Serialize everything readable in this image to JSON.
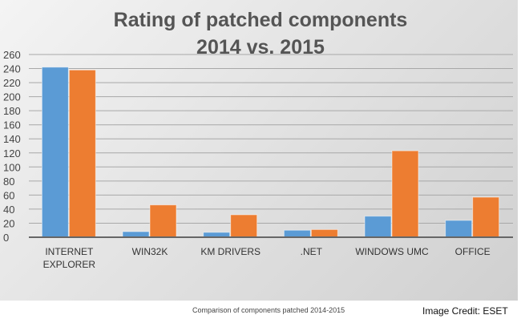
{
  "chart_data": {
    "type": "bar",
    "title_lines": [
      "Rating of patched components",
      "2014 vs. 2015"
    ],
    "categories": [
      "INTERNET EXPLORER",
      "WIN32K",
      "KM DRIVERS",
      ".NET",
      "WINDOWS UMC",
      "OFFICE"
    ],
    "category_lines": [
      [
        "INTERNET",
        "EXPLORER"
      ],
      [
        "WIN32K"
      ],
      [
        "KM DRIVERS"
      ],
      [
        ".NET"
      ],
      [
        "WINDOWS UMC"
      ],
      [
        "OFFICE"
      ]
    ],
    "series": [
      {
        "name": "2014",
        "color": "#5b9bd5",
        "values": [
          242,
          8,
          7,
          10,
          30,
          24
        ]
      },
      {
        "name": "2015",
        "color": "#ed7d31",
        "values": [
          238,
          46,
          32,
          11,
          123,
          57
        ]
      }
    ],
    "ylim": [
      0,
      260
    ],
    "yticks": [
      0,
      20,
      40,
      60,
      80,
      100,
      120,
      140,
      160,
      180,
      200,
      220,
      240,
      260
    ],
    "grid": true,
    "legend": "none"
  },
  "caption": "Comparison of components patched 2014-2015",
  "credit": "Image Credit: ESET"
}
